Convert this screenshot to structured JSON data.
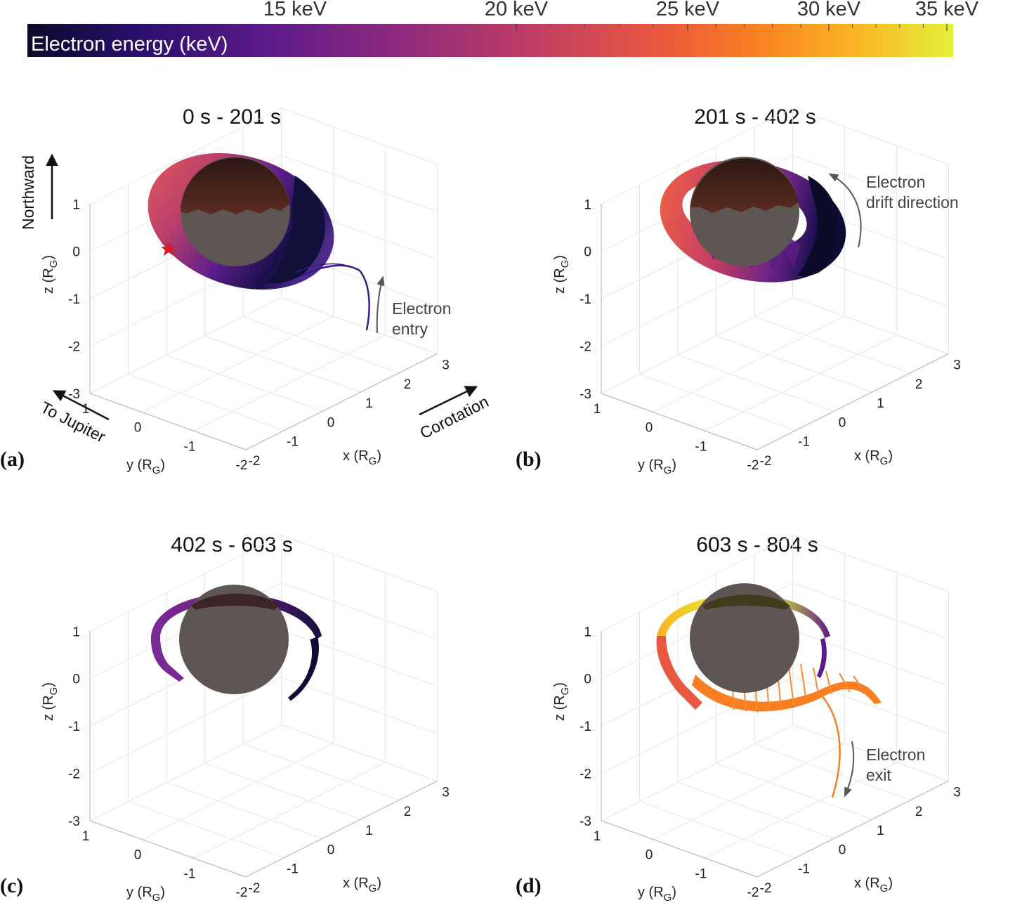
{
  "colorbar": {
    "label": "Electron energy (keV)",
    "ticks": [
      {
        "value": 15,
        "text": "15 keV"
      },
      {
        "value": 20,
        "text": "20 keV"
      },
      {
        "value": 25,
        "text": "25 keV"
      },
      {
        "value": 30,
        "text": "30 keV"
      },
      {
        "value": 35,
        "text": "35 keV"
      }
    ],
    "colormap": [
      "#0b0b2a",
      "#2a0f6e",
      "#5c1b8a",
      "#8e2a7e",
      "#c13e63",
      "#e8573f",
      "#f97e22",
      "#fbb224",
      "#e3f03a"
    ],
    "tick_colors": {
      "minor": "#555555",
      "major": "#333333"
    }
  },
  "chart_data": [
    {
      "type": "3d-trajectory",
      "panel_label": "(a)",
      "title": "0 s - 201 s",
      "xlabel": "x (RG)",
      "ylabel": "y (RG)",
      "zlabel": "z (RG)",
      "xlim": [
        -2,
        3
      ],
      "ylim": [
        -2,
        1
      ],
      "zlim": [
        -3,
        1
      ],
      "x_ticks": [
        "-2",
        "-1",
        "0",
        "1",
        "2",
        "3"
      ],
      "y_ticks": [
        "-2",
        "-1",
        "0",
        "1"
      ],
      "z_ticks": [
        "1",
        "0",
        "-1",
        "-2",
        "-3"
      ],
      "annotations": [
        "Northward",
        "To Jupiter",
        "Corotation",
        "Electron entry"
      ],
      "marker": "start-star"
    },
    {
      "type": "3d-trajectory",
      "panel_label": "(b)",
      "title": "201 s - 402 s",
      "xlabel": "x (RG)",
      "ylabel": "y (RG)",
      "zlabel": "z (RG)",
      "xlim": [
        -2,
        3
      ],
      "ylim": [
        -2,
        1
      ],
      "zlim": [
        -3,
        1
      ],
      "x_ticks": [
        "-2",
        "-1",
        "0",
        "1",
        "2",
        "3"
      ],
      "y_ticks": [
        "-2",
        "-1",
        "0",
        "1"
      ],
      "z_ticks": [
        "1",
        "0",
        "-1",
        "-2",
        "-3"
      ],
      "annotations": [
        "Electron drift direction"
      ]
    },
    {
      "type": "3d-trajectory",
      "panel_label": "(c)",
      "title": "402 s - 603 s",
      "xlabel": "x (RG)",
      "ylabel": "y (RG)",
      "zlabel": "z (RG)",
      "xlim": [
        -2,
        3
      ],
      "ylim": [
        -2,
        1
      ],
      "zlim": [
        -3,
        1
      ],
      "x_ticks": [
        "-2",
        "-1",
        "0",
        "1",
        "2",
        "3"
      ],
      "y_ticks": [
        "-2",
        "-1",
        "0",
        "1"
      ],
      "z_ticks": [
        "1",
        "0",
        "-1",
        "-2",
        "-3"
      ],
      "annotations": []
    },
    {
      "type": "3d-trajectory",
      "panel_label": "(d)",
      "title": "603 s - 804 s",
      "xlabel": "x (RG)",
      "ylabel": "y (RG)",
      "zlabel": "z (RG)",
      "xlim": [
        -2,
        3
      ],
      "ylim": [
        -2,
        1
      ],
      "zlim": [
        -3,
        1
      ],
      "x_ticks": [
        "-2",
        "-1",
        "0",
        "1",
        "2",
        "3"
      ],
      "y_ticks": [
        "-2",
        "-1",
        "0",
        "1"
      ],
      "z_ticks": [
        "1",
        "0",
        "-1",
        "-2",
        "-3"
      ],
      "annotations": [
        "Electron exit"
      ]
    }
  ],
  "annotations_text": {
    "northward": "Northward",
    "to_jupiter": "To Jupiter",
    "corotation": "Corotation",
    "electron": "Electron",
    "entry": "entry",
    "drift": "drift direction",
    "exit": "exit"
  },
  "axis_text": {
    "axis_main": "x (R",
    "axis_y_main": "y (R",
    "axis_z_main": "z (R",
    "sub": "G",
    "close": ")"
  },
  "colors": {
    "moon": "#5e5652",
    "moon_dark_cap": "#3a1a14",
    "grid": "#e6e6e6",
    "axis": "#bbbbbb",
    "annotation_arrow": "#555555",
    "star": "#d81b24"
  }
}
